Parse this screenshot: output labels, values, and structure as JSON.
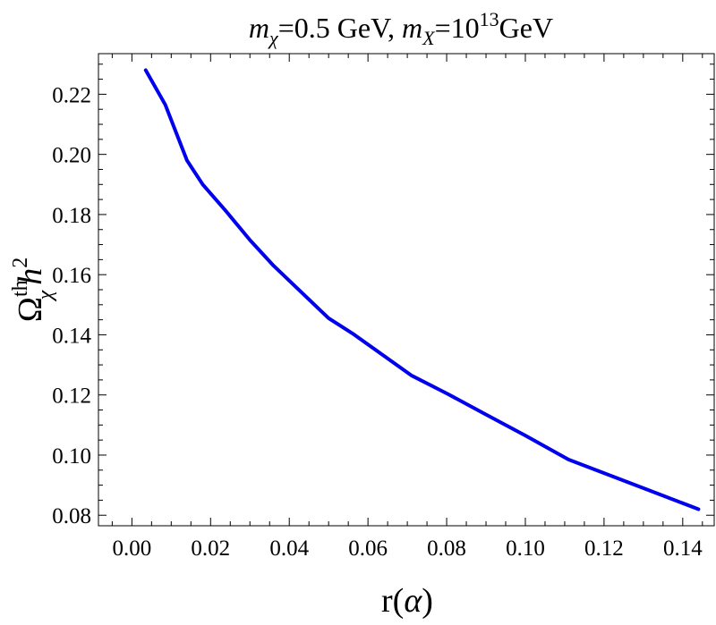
{
  "chart_data": {
    "type": "line",
    "title": {
      "m1_symbol": "m",
      "m1_subscript": "χ",
      "m1_value": "=0.5 GeV, ",
      "m2_symbol": "m",
      "m2_subscript": "X",
      "m2_value_base": "=10",
      "m2_value_exponent": "13",
      "m2_unit": "GeV"
    },
    "xlabel": {
      "prefix": "r(",
      "symbol": "α",
      "suffix": ")"
    },
    "ylabel": {
      "symbol": "Ω",
      "superscript": "th",
      "subscript": "χ",
      "h": "h",
      "power": "2"
    },
    "xlim": [
      -0.0085,
      0.148
    ],
    "ylim": [
      0.0765,
      0.2335
    ],
    "x_ticks": [
      0.0,
      0.02,
      0.04,
      0.06,
      0.08,
      0.1,
      0.12,
      0.14
    ],
    "x_tick_labels": [
      "0.00",
      "0.02",
      "0.04",
      "0.06",
      "0.08",
      "0.10",
      "0.12",
      "0.14"
    ],
    "y_ticks": [
      0.08,
      0.1,
      0.12,
      0.14,
      0.16,
      0.18,
      0.2,
      0.22
    ],
    "y_tick_labels": [
      "0.08",
      "0.10",
      "0.12",
      "0.14",
      "0.16",
      "0.18",
      "0.20",
      "0.22"
    ],
    "grid": false,
    "series": [
      {
        "color": "#0000ee",
        "x": [
          0.0035,
          0.0085,
          0.014,
          0.018,
          0.024,
          0.03,
          0.036,
          0.042,
          0.05,
          0.056,
          0.063,
          0.071,
          0.08,
          0.09,
          0.1,
          0.111,
          0.122,
          0.133,
          0.144
        ],
        "y": [
          0.228,
          0.2165,
          0.198,
          0.19,
          0.181,
          0.1715,
          0.163,
          0.1555,
          0.1455,
          0.1405,
          0.134,
          0.1265,
          0.1205,
          0.1135,
          0.1065,
          0.0985,
          0.093,
          0.0875,
          0.082
        ]
      }
    ]
  }
}
